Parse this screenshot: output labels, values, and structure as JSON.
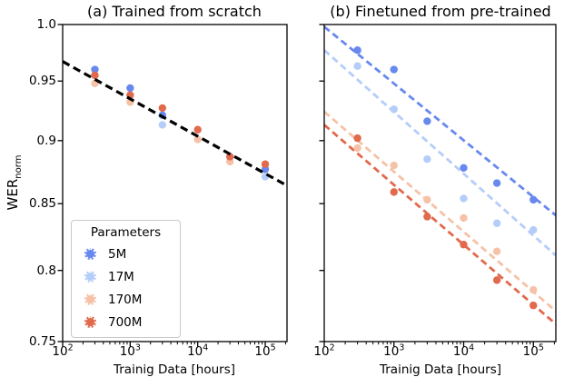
{
  "legend": {
    "title": "Parameters",
    "items": [
      {
        "label": "5M",
        "color": "#6788ee"
      },
      {
        "label": "17M",
        "color": "#b5cdf9"
      },
      {
        "label": "170M",
        "color": "#f5c2a7"
      },
      {
        "label": "700M",
        "color": "#e1694c"
      }
    ]
  },
  "chart_data": [
    {
      "type": "scatter",
      "title": "(a) Trained from scratch",
      "xlabel": "Trainig Data [hours]",
      "ylabel": "WER",
      "ylabel_sub": "norm",
      "xscale": "log",
      "yscale": "log",
      "xlim": [
        100,
        210000
      ],
      "ylim": [
        0.75,
        1.0
      ],
      "xticks": [
        {
          "v": 100,
          "base": "10",
          "exp": "2"
        },
        {
          "v": 1000,
          "base": "10",
          "exp": "3"
        },
        {
          "v": 10000,
          "base": "10",
          "exp": "4"
        },
        {
          "v": 100000,
          "base": "10",
          "exp": "5"
        }
      ],
      "yticks": [
        {
          "v": 1.0,
          "label": "1.0"
        },
        {
          "v": 0.95,
          "label": "0.95"
        },
        {
          "v": 0.9,
          "label": "0.9"
        },
        {
          "v": 0.85,
          "label": "0.85"
        },
        {
          "v": 0.8,
          "label": "0.8"
        },
        {
          "v": 0.75,
          "label": "0.75"
        }
      ],
      "series": [
        {
          "name": "5M",
          "color": "#6788ee",
          "points": [
            [
              300,
              0.96
            ],
            [
              1000,
              0.944
            ],
            [
              3000,
              0.921
            ],
            [
              100000,
              0.877
            ]
          ]
        },
        {
          "name": "17M",
          "color": "#b5cdf9",
          "points": [
            [
              3000,
              0.913
            ],
            [
              100000,
              0.871
            ]
          ]
        },
        {
          "name": "170M",
          "color": "#f5c2a7",
          "points": [
            [
              300,
              0.948
            ],
            [
              1000,
              0.932
            ],
            [
              10000,
              0.901
            ],
            [
              30000,
              0.883
            ]
          ]
        },
        {
          "name": "700M",
          "color": "#e1694c",
          "points": [
            [
              300,
              0.955
            ],
            [
              1000,
              0.938
            ],
            [
              3000,
              0.927
            ],
            [
              10000,
              0.909
            ],
            [
              30000,
              0.887
            ],
            [
              100000,
              0.881
            ]
          ]
        }
      ],
      "fit_lines": [
        {
          "name": "scratch-fit",
          "color": "#000000",
          "x": [
            100,
            210000
          ],
          "y": [
            0.967,
            0.864
          ]
        }
      ]
    },
    {
      "type": "scatter",
      "title": "(b) Finetuned from pre-trained",
      "xlabel": "Trainig Data [hours]",
      "xscale": "log",
      "yscale": "log",
      "xlim": [
        100,
        210000
      ],
      "ylim": [
        0.75,
        1.0
      ],
      "xticks": [
        {
          "v": 100,
          "base": "10",
          "exp": "2"
        },
        {
          "v": 1000,
          "base": "10",
          "exp": "3"
        },
        {
          "v": 10000,
          "base": "10",
          "exp": "4"
        },
        {
          "v": 100000,
          "base": "10",
          "exp": "5"
        }
      ],
      "yticks": [
        {
          "v": 1.0
        },
        {
          "v": 0.95
        },
        {
          "v": 0.9
        },
        {
          "v": 0.85
        },
        {
          "v": 0.8
        },
        {
          "v": 0.75
        }
      ],
      "series": [
        {
          "name": "5M",
          "color": "#6788ee",
          "points": [
            [
              300,
              0.977
            ],
            [
              1000,
              0.96
            ],
            [
              3000,
              0.916
            ],
            [
              10000,
              0.878
            ],
            [
              30000,
              0.866
            ],
            [
              100000,
              0.853
            ]
          ]
        },
        {
          "name": "17M",
          "color": "#b5cdf9",
          "points": [
            [
              300,
              0.963
            ],
            [
              1000,
              0.926
            ],
            [
              3000,
              0.885
            ],
            [
              10000,
              0.854
            ],
            [
              30000,
              0.835
            ],
            [
              100000,
              0.83
            ]
          ]
        },
        {
          "name": "170M",
          "color": "#f5c2a7",
          "points": [
            [
              300,
              0.894
            ],
            [
              1000,
              0.88
            ],
            [
              3000,
              0.853
            ],
            [
              10000,
              0.839
            ],
            [
              30000,
              0.814
            ],
            [
              100000,
              0.786
            ]
          ]
        },
        {
          "name": "700M",
          "color": "#e1694c",
          "points": [
            [
              300,
              0.902
            ],
            [
              1000,
              0.859
            ],
            [
              3000,
              0.84
            ],
            [
              10000,
              0.819
            ],
            [
              30000,
              0.793
            ],
            [
              100000,
              0.775
            ]
          ]
        }
      ],
      "fit_lines": [
        {
          "name": "5M-fit",
          "color": "#6788ee",
          "x": [
            100,
            210000
          ],
          "y": [
            0.998,
            0.841
          ]
        },
        {
          "name": "17M-fit",
          "color": "#b5cdf9",
          "x": [
            100,
            210000
          ],
          "y": [
            0.977,
            0.811
          ]
        },
        {
          "name": "170M-fit",
          "color": "#f5c2a7",
          "x": [
            100,
            210000
          ],
          "y": [
            0.924,
            0.771
          ]
        },
        {
          "name": "700M-fit",
          "color": "#e1694c",
          "x": [
            100,
            210000
          ],
          "y": [
            0.913,
            0.762
          ]
        }
      ]
    }
  ]
}
